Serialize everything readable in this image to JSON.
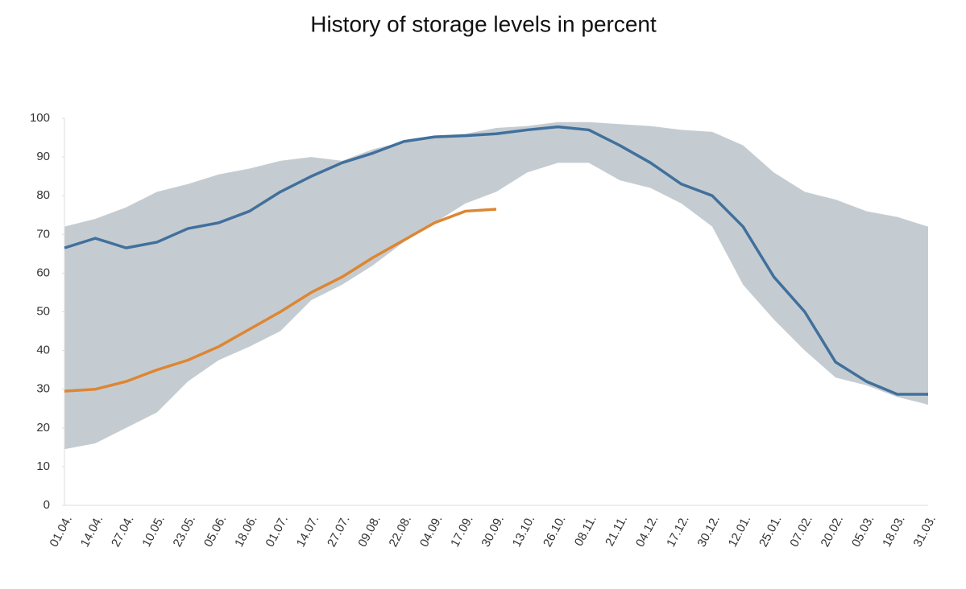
{
  "chart_data": {
    "type": "line",
    "title": "History of storage levels in percent",
    "categories": [
      "01.04.",
      "14.04.",
      "27.04.",
      "10.05.",
      "23.05.",
      "05.06.",
      "18.06.",
      "01.07.",
      "14.07.",
      "27.07.",
      "09.08.",
      "22.08.",
      "04.09.",
      "17.09.",
      "30.09.",
      "13.10.",
      "26.10.",
      "08.11.",
      "21.11.",
      "04.12.",
      "17.12.",
      "30.12.",
      "12.01.",
      "25.01.",
      "07.02.",
      "20.02.",
      "05.03.",
      "18.03.",
      "31.03."
    ],
    "band": {
      "color": "#c5ccd1",
      "upper": [
        72,
        74,
        77,
        81,
        83,
        85.5,
        87,
        89,
        90,
        89,
        92,
        94,
        95.5,
        96,
        97.5,
        98,
        99,
        99,
        98.5,
        98,
        97,
        96.5,
        93,
        86,
        81,
        79,
        76,
        74.5,
        72
      ],
      "lower": [
        14.5,
        16,
        20,
        24,
        32,
        37.5,
        41,
        45,
        53,
        57,
        62,
        68,
        73,
        78,
        81,
        86,
        88.5,
        88.5,
        84,
        82,
        78,
        72,
        57,
        48,
        40,
        33,
        31,
        28,
        26
      ]
    },
    "series": [
      {
        "color": "#41709c",
        "values": [
          66.5,
          69,
          66.5,
          68,
          71.5,
          73,
          76,
          81,
          85,
          88.5,
          91,
          94,
          95.2,
          95.5,
          96,
          97,
          97.8,
          97,
          93,
          88.5,
          83,
          80,
          72,
          59,
          50,
          37,
          32,
          28.7,
          28.7
        ]
      },
      {
        "color": "#dd8633",
        "values": [
          29.5,
          30,
          32,
          35,
          37.5,
          41,
          45.5,
          50,
          55,
          59,
          64,
          68.5,
          73,
          76,
          76.5,
          null,
          null,
          null,
          null,
          null,
          null,
          null,
          null,
          null,
          null,
          null,
          null,
          null,
          null
        ]
      }
    ],
    "ylim": [
      0,
      100
    ],
    "yticks": [
      0,
      10,
      20,
      30,
      40,
      50,
      60,
      70,
      80,
      90,
      100
    ],
    "grid": false
  }
}
